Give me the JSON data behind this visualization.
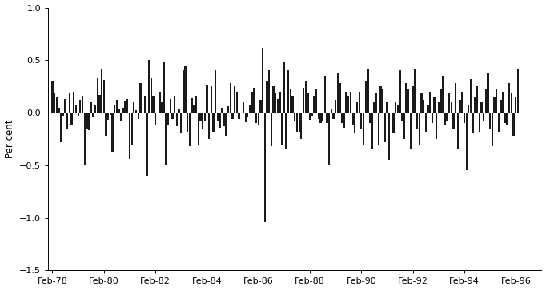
{
  "ylabel": "Per cent",
  "ylim": [
    -1.5,
    1.0
  ],
  "yticks": [
    -1.5,
    -1.0,
    -0.5,
    0.0,
    0.5,
    1.0
  ],
  "xtick_labels": [
    "Feb-78",
    "Feb-80",
    "Feb-82",
    "Feb-84",
    "Feb-86",
    "Feb-88",
    "Feb-90",
    "Feb-92",
    "Feb-94",
    "Feb-96"
  ],
  "xtick_months": [
    0,
    24,
    48,
    72,
    96,
    120,
    144,
    168,
    192,
    216
  ],
  "bar_color": "#1a1a1a",
  "background_color": "#ffffff",
  "values": [
    0.3,
    0.19,
    0.15,
    0.05,
    -0.28,
    -0.03,
    0.13,
    -0.15,
    0.18,
    -0.12,
    0.2,
    0.08,
    -0.03,
    0.12,
    0.16,
    -0.5,
    -0.15,
    -0.17,
    0.1,
    -0.04,
    0.07,
    0.33,
    0.17,
    0.42,
    0.31,
    -0.22,
    -0.07,
    -0.02,
    -0.37,
    0.07,
    0.12,
    0.04,
    -0.08,
    0.05,
    0.11,
    0.13,
    -0.44,
    -0.3,
    0.1,
    0.02,
    -0.06,
    0.28,
    0.0,
    0.16,
    -0.6,
    0.5,
    0.33,
    0.16,
    -0.12,
    -0.01,
    0.2,
    0.1,
    0.48,
    -0.5,
    -0.12,
    0.13,
    -0.06,
    0.16,
    -0.13,
    0.04,
    -0.2,
    0.4,
    0.45,
    -0.18,
    -0.32,
    0.14,
    0.08,
    0.16,
    -0.3,
    -0.08,
    -0.15,
    -0.08,
    0.26,
    -0.25,
    0.25,
    -0.18,
    0.4,
    -0.08,
    -0.14,
    0.05,
    -0.13,
    -0.22,
    0.06,
    0.28,
    -0.06,
    0.25,
    0.2,
    -0.06,
    0.0,
    0.1,
    -0.09,
    -0.04,
    0.07,
    0.2,
    0.24,
    -0.1,
    -0.12,
    0.12,
    0.62,
    -1.04,
    0.3,
    0.4,
    -0.32,
    0.25,
    0.18,
    0.13,
    0.2,
    -0.3,
    0.48,
    -0.35,
    0.41,
    0.22,
    0.16,
    -0.08,
    -0.18,
    -0.18,
    -0.25,
    0.24,
    0.3,
    0.18,
    -0.07,
    -0.03,
    0.16,
    0.22,
    -0.06,
    -0.1,
    -0.08,
    0.35,
    -0.1,
    -0.5,
    0.04,
    -0.06,
    0.12,
    0.38,
    0.28,
    -0.1,
    -0.14,
    0.2,
    0.16,
    0.2,
    -0.12,
    -0.2,
    0.1,
    0.2,
    -0.15,
    -0.3,
    0.3,
    0.42,
    -0.1,
    -0.35,
    0.1,
    0.18,
    -0.3,
    0.25,
    0.22,
    -0.28,
    0.1,
    -0.45,
    0.0,
    -0.2,
    0.1,
    0.08,
    0.4,
    -0.08,
    -0.25,
    0.28,
    0.22,
    -0.35,
    0.25,
    0.42,
    -0.15,
    -0.3,
    0.18,
    0.12,
    -0.18,
    0.08,
    0.2,
    -0.1,
    0.15,
    -0.25,
    0.1,
    0.22,
    0.35,
    -0.12,
    -0.08,
    0.18,
    0.1,
    -0.15,
    0.28,
    -0.35,
    0.12,
    0.2,
    -0.1,
    -0.55,
    0.08,
    0.32,
    -0.2,
    0.15,
    0.25,
    -0.18,
    0.1,
    -0.08,
    0.22,
    0.38,
    -0.15,
    -0.32,
    0.15,
    0.22,
    -0.18,
    0.12,
    0.2,
    -0.1,
    -0.12,
    0.28,
    0.18,
    -0.22,
    0.15,
    0.42
  ]
}
